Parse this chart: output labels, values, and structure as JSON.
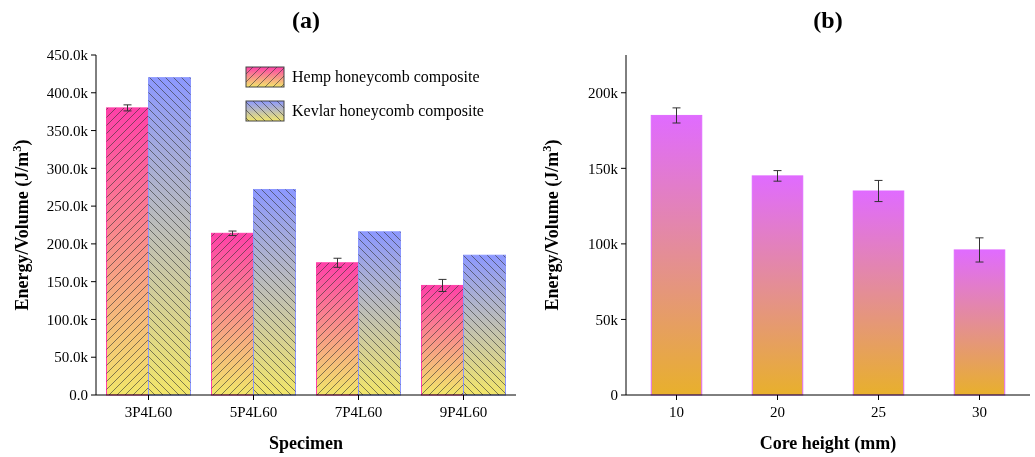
{
  "chart_data": [
    {
      "type": "bar",
      "title": "(a)",
      "xlabel": "Specimen",
      "ylabel": "Energy/Volume (J/m$^{3}$)",
      "categories": [
        "3P4L60",
        "5P4L60",
        "7P4L60",
        "9P4L60"
      ],
      "series": [
        {
          "name": "Hemp honeycomb composite",
          "color": "#ff40a8",
          "values": [
            380000,
            214000,
            175000,
            145000
          ],
          "errors": [
            4000,
            3000,
            6000,
            8000
          ]
        },
        {
          "name": "Kevlar honeycomb composite",
          "color": "#8c98ff",
          "values": [
            420000,
            272000,
            216000,
            185000
          ]
        }
      ],
      "ylim": [
        0,
        450000
      ],
      "yticks": [
        {
          "value": 0,
          "label": "0.0"
        },
        {
          "value": 50000,
          "label": "50.0k"
        },
        {
          "value": 100000,
          "label": "100.0k"
        },
        {
          "value": 150000,
          "label": "150.0k"
        },
        {
          "value": 200000,
          "label": "200.0k"
        },
        {
          "value": 250000,
          "label": "250.0k"
        },
        {
          "value": 300000,
          "label": "300.0k"
        },
        {
          "value": 350000,
          "label": "350.0k"
        },
        {
          "value": 400000,
          "label": "400.0k"
        },
        {
          "value": 450000,
          "label": "450.0k"
        }
      ],
      "legend": "top right"
    },
    {
      "type": "bar",
      "title": "(b)",
      "xlabel": "Core height (mm)",
      "ylabel": "Energy/Volume (J/m$^{3}$)",
      "categories": [
        "10",
        "20",
        "25",
        "30"
      ],
      "values": [
        185000,
        145000,
        135000,
        96000
      ],
      "errors": [
        5000,
        3500,
        7000,
        8000
      ],
      "color": "#e06bff",
      "ylim": [
        0,
        225000
      ],
      "yticks": [
        {
          "value": 0,
          "label": "0"
        },
        {
          "value": 50000,
          "label": "50k"
        },
        {
          "value": 100000,
          "label": "100k"
        },
        {
          "value": 150000,
          "label": "150k"
        },
        {
          "value": 200000,
          "label": "200k"
        }
      ]
    }
  ]
}
